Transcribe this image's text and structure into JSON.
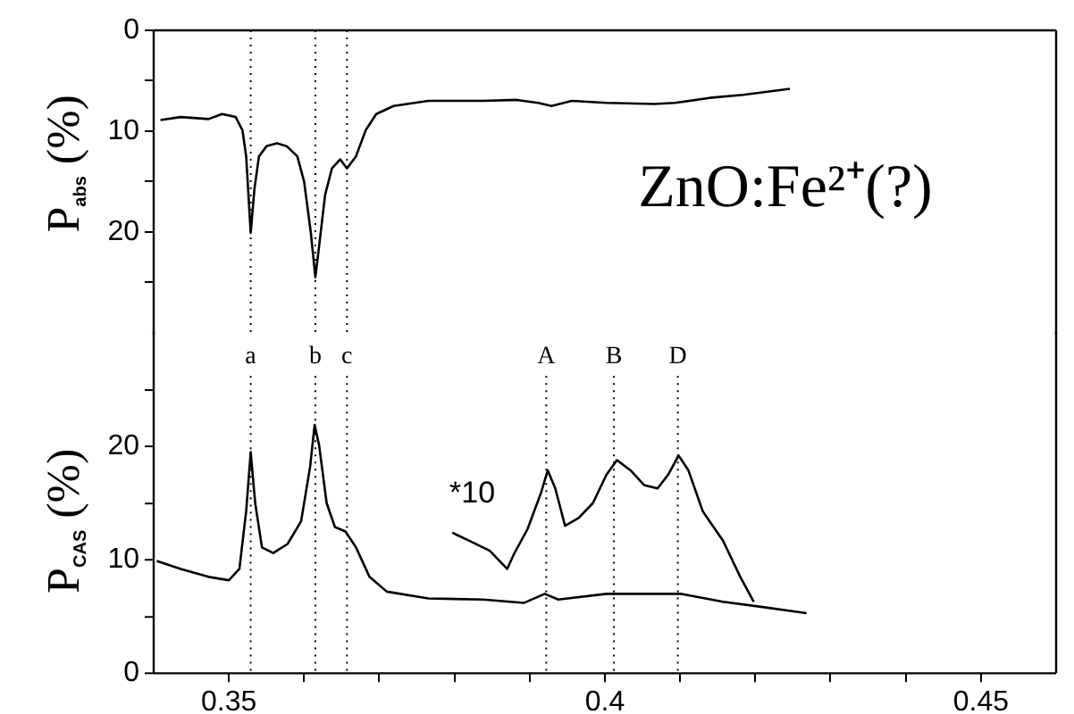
{
  "chart_data": [
    {
      "type": "line",
      "ylabel": "P$_{abs}$ (%)",
      "xlim": [
        0.34,
        0.46
      ],
      "ylim": [
        30,
        0
      ],
      "yticks": [
        0,
        {
          "value": 5,
          "label": null
        },
        10,
        {
          "value": 15,
          "label": null
        },
        20,
        {
          "value": 25,
          "label": null
        }
      ],
      "tick_labels": "y",
      "grid": false,
      "legend": false,
      "marker": "none",
      "line_style": "solid",
      "annotations": [
        "ZnO:Fe²⁺(?)"
      ],
      "ref_lines": [
        {
          "axis": "x",
          "value": 0.3529,
          "line_style": "dotted",
          "color": "#000000"
        },
        {
          "axis": "x",
          "value": 0.3615,
          "line_style": "dotted",
          "color": "#000000"
        },
        {
          "axis": "x",
          "value": 0.3657,
          "line_style": "dotted",
          "color": "#000000"
        }
      ],
      "series": [
        {
          "color": "#000000",
          "x": [
            0.3409,
            0.3436,
            0.3473,
            0.3491,
            0.3509,
            0.3518,
            0.3523,
            0.3529,
            0.3534,
            0.354,
            0.355,
            0.3564,
            0.3577,
            0.3591,
            0.36,
            0.3609,
            0.3615,
            0.362,
            0.3628,
            0.3637,
            0.3648,
            0.3657,
            0.3669,
            0.3682,
            0.3696,
            0.3719,
            0.3765,
            0.3838,
            0.3883,
            0.3911,
            0.3929,
            0.3956,
            0.4002,
            0.4066,
            0.4093,
            0.4139,
            0.4184,
            0.4246
          ],
          "values": [
            8.9,
            8.6,
            8.8,
            8.3,
            8.6,
            9.9,
            12.5,
            20.1,
            15.7,
            12.5,
            11.5,
            11.2,
            11.5,
            12.5,
            15.0,
            20.1,
            24.5,
            21.4,
            16.3,
            13.7,
            12.8,
            13.7,
            12.5,
            9.9,
            8.3,
            7.5,
            7.0,
            7.0,
            6.9,
            7.2,
            7.5,
            7.0,
            7.2,
            7.3,
            7.2,
            6.7,
            6.4,
            5.8
          ]
        }
      ]
    },
    {
      "type": "line",
      "ylabel": "P$_{CAS}$ (%)",
      "xlim": [
        0.34,
        0.46
      ],
      "xticks": [
        0.35,
        {
          "value": 0.36,
          "label": null
        },
        {
          "value": 0.37,
          "label": null
        },
        {
          "value": 0.38,
          "label": null
        },
        {
          "value": 0.39,
          "label": null
        },
        0.4,
        {
          "value": 0.41,
          "label": null
        },
        {
          "value": 0.42,
          "label": null
        },
        {
          "value": 0.43,
          "label": null
        },
        {
          "value": 0.44,
          "label": null
        },
        0.45
      ],
      "ylim": [
        0,
        30
      ],
      "yticks": [
        0,
        {
          "value": 5,
          "label": null
        },
        10,
        {
          "value": 15,
          "label": null
        },
        20,
        {
          "value": 25,
          "label": null
        }
      ],
      "grid": false,
      "legend": false,
      "marker": "none",
      "line_style": "solid",
      "annotations": [
        "*10"
      ],
      "ref_lines": [
        {
          "axis": "x",
          "value": 0.3529,
          "label": "a",
          "line_style": "dotted",
          "color": "#000000"
        },
        {
          "axis": "x",
          "value": 0.3615,
          "label": "b",
          "line_style": "dotted",
          "color": "#000000"
        },
        {
          "axis": "x",
          "value": 0.3657,
          "label": "c",
          "line_style": "dotted",
          "color": "#000000"
        },
        {
          "axis": "x",
          "value": 0.3922,
          "label": "A",
          "line_style": "dotted",
          "color": "#000000"
        },
        {
          "axis": "x",
          "value": 0.4012,
          "label": "B",
          "line_style": "dotted",
          "color": "#000000"
        },
        {
          "axis": "x",
          "value": 0.4097,
          "label": "D",
          "line_style": "dotted",
          "color": "#000000"
        }
      ],
      "series": [
        {
          "color": "#000000",
          "x": [
            0.3404,
            0.3436,
            0.3473,
            0.35,
            0.3514,
            0.3523,
            0.3529,
            0.3535,
            0.3544,
            0.3559,
            0.3578,
            0.3596,
            0.3608,
            0.3614,
            0.362,
            0.363,
            0.3641,
            0.3655,
            0.3669,
            0.3687,
            0.371,
            0.3765,
            0.3838,
            0.3892,
            0.392,
            0.3938,
            0.4002,
            0.4102,
            0.4157,
            0.4203,
            0.4268
          ],
          "values": [
            9.9,
            9.2,
            8.5,
            8.2,
            9.2,
            14.3,
            19.5,
            15.0,
            11.1,
            10.6,
            11.4,
            13.4,
            18.2,
            21.9,
            20.1,
            15.0,
            12.9,
            12.5,
            11.1,
            8.5,
            7.2,
            6.6,
            6.5,
            6.2,
            7.0,
            6.5,
            7.0,
            7.0,
            6.3,
            5.9,
            5.3
          ]
        },
        {
          "color": "#000000",
          "x": [
            0.3797,
            0.3819,
            0.3847,
            0.387,
            0.3879,
            0.3897,
            0.3915,
            0.3924,
            0.3934,
            0.3947,
            0.3965,
            0.3984,
            0.4002,
            0.4016,
            0.4034,
            0.4052,
            0.407,
            0.4084,
            0.4098,
            0.4111,
            0.413,
            0.4157,
            0.418,
            0.4198
          ],
          "values": [
            12.4,
            11.7,
            10.8,
            9.2,
            10.5,
            12.7,
            15.9,
            17.9,
            16.3,
            13.0,
            13.7,
            15.0,
            17.5,
            18.8,
            17.9,
            16.6,
            16.3,
            17.5,
            19.2,
            17.9,
            14.3,
            11.7,
            8.5,
            6.3
          ]
        }
      ]
    }
  ]
}
